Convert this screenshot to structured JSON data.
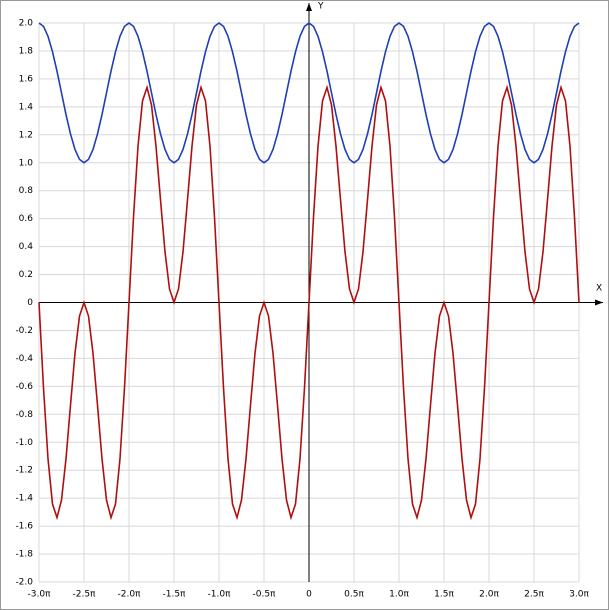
{
  "chart_data": {
    "type": "line",
    "x_label": "X",
    "y_label": "Y",
    "x": [
      -3,
      -2.95,
      -2.9,
      -2.85,
      -2.8,
      -2.75,
      -2.7,
      -2.65,
      -2.6,
      -2.55,
      -2.5,
      -2.45,
      -2.4,
      -2.35,
      -2.3,
      -2.25,
      -2.2,
      -2.15,
      -2.1,
      -2.05,
      -2,
      -1.95,
      -1.9,
      -1.85,
      -1.8,
      -1.75,
      -1.7,
      -1.65,
      -1.6,
      -1.55,
      -1.5,
      -1.45,
      -1.4,
      -1.35,
      -1.3,
      -1.25,
      -1.2,
      -1.15,
      -1.1,
      -1.05,
      -1,
      -0.95,
      -0.9,
      -0.85,
      -0.8,
      -0.75,
      -0.7,
      -0.65,
      -0.6,
      -0.55,
      -0.5,
      -0.45,
      -0.4,
      -0.35,
      -0.3,
      -0.25,
      -0.2,
      -0.15,
      -0.1,
      -0.05,
      0,
      0.05,
      0.1,
      0.15,
      0.2,
      0.25,
      0.3,
      0.35,
      0.4,
      0.45,
      0.5,
      0.55,
      0.6,
      0.65,
      0.7,
      0.75,
      0.8,
      0.85,
      0.9,
      0.95,
      1,
      1.05,
      1.1,
      1.15,
      1.2,
      1.25,
      1.3,
      1.35,
      1.4,
      1.45,
      1.5,
      1.55,
      1.6,
      1.65,
      1.7,
      1.75,
      1.8,
      1.85,
      1.9,
      1.95,
      2,
      2.05,
      2.1,
      2.15,
      2.2,
      2.25,
      2.3,
      2.35,
      2.4,
      2.45,
      2.5,
      2.55,
      2.6,
      2.65,
      2.7,
      2.75,
      2.8,
      2.85,
      2.9,
      2.95,
      3
    ],
    "series": [
      {
        "color": "#1f3fb4",
        "values": [
          2,
          1.976,
          1.905,
          1.794,
          1.655,
          1.5,
          1.345,
          1.206,
          1.095,
          1.024,
          1,
          1.024,
          1.095,
          1.206,
          1.345,
          1.5,
          1.655,
          1.794,
          1.905,
          1.976,
          2,
          1.976,
          1.905,
          1.794,
          1.655,
          1.5,
          1.345,
          1.206,
          1.095,
          1.024,
          1,
          1.024,
          1.095,
          1.206,
          1.345,
          1.5,
          1.655,
          1.794,
          1.905,
          1.976,
          2,
          1.976,
          1.905,
          1.794,
          1.655,
          1.5,
          1.345,
          1.206,
          1.095,
          1.024,
          1,
          1.024,
          1.095,
          1.206,
          1.345,
          1.5,
          1.655,
          1.794,
          1.905,
          1.976,
          2,
          1.976,
          1.905,
          1.794,
          1.655,
          1.5,
          1.345,
          1.206,
          1.095,
          1.024,
          1,
          1.024,
          1.095,
          1.206,
          1.345,
          1.5,
          1.655,
          1.794,
          1.905,
          1.976,
          2,
          1.976,
          1.905,
          1.794,
          1.655,
          1.5,
          1.345,
          1.206,
          1.095,
          1.024,
          1,
          1.024,
          1.095,
          1.206,
          1.345,
          1.5,
          1.655,
          1.794,
          1.905,
          1.976,
          2,
          1.976,
          1.905,
          1.794,
          1.655,
          1.5,
          1.345,
          1.206,
          1.095,
          1.024,
          1,
          1.024,
          1.095,
          1.206,
          1.345,
          1.5,
          1.655,
          1.794,
          1.905,
          1.976,
          2
        ]
      },
      {
        "color": "#b00f0f",
        "values": [
          0,
          -0.61,
          -1.118,
          -1.442,
          -1.539,
          -1.414,
          -1.118,
          -0.735,
          -0.363,
          -0.097,
          0,
          -0.097,
          -0.363,
          -0.735,
          -1.118,
          -1.414,
          -1.539,
          -1.442,
          -1.118,
          -0.61,
          0,
          0.61,
          1.118,
          1.442,
          1.539,
          1.414,
          1.118,
          0.735,
          0.363,
          0.097,
          0,
          0.097,
          0.363,
          0.735,
          1.118,
          1.414,
          1.539,
          1.442,
          1.118,
          0.61,
          0,
          -0.61,
          -1.118,
          -1.442,
          -1.539,
          -1.414,
          -1.118,
          -0.735,
          -0.363,
          -0.097,
          0,
          -0.097,
          -0.363,
          -0.735,
          -1.118,
          -1.414,
          -1.539,
          -1.442,
          -1.118,
          -0.61,
          0,
          0.61,
          1.118,
          1.442,
          1.539,
          1.414,
          1.118,
          0.735,
          0.363,
          0.097,
          0,
          0.097,
          0.363,
          0.735,
          1.118,
          1.414,
          1.539,
          1.442,
          1.118,
          0.61,
          0,
          -0.61,
          -1.118,
          -1.442,
          -1.539,
          -1.414,
          -1.118,
          -0.735,
          -0.363,
          -0.097,
          0,
          -0.097,
          -0.363,
          -0.735,
          -1.118,
          -1.414,
          -1.539,
          -1.442,
          -1.118,
          -0.61,
          0,
          0.61,
          1.118,
          1.442,
          1.539,
          1.414,
          1.118,
          0.735,
          0.363,
          0.097,
          0,
          0.097,
          0.363,
          0.735,
          1.118,
          1.414,
          1.539,
          1.442,
          1.118,
          0.61,
          0
        ]
      }
    ],
    "xlim": [
      -3,
      3
    ],
    "ylim": [
      -2,
      2
    ],
    "xticks": [
      {
        "value": -3,
        "label": "-3.0π"
      },
      {
        "value": -2.5,
        "label": "-2.5π"
      },
      {
        "value": -2,
        "label": "-2.0π"
      },
      {
        "value": -1.5,
        "label": "-1.5π"
      },
      {
        "value": -1,
        "label": "-1.0π"
      },
      {
        "value": -0.5,
        "label": "-0.5π"
      },
      0,
      {
        "value": 0.5,
        "label": "0.5π"
      },
      {
        "value": 1,
        "label": "1.0π"
      },
      {
        "value": 1.5,
        "label": "1.5π"
      },
      {
        "value": 2,
        "label": "2.0π"
      },
      {
        "value": 2.5,
        "label": "2.5π"
      },
      {
        "value": 3,
        "label": "3.0π"
      }
    ],
    "yticks": [
      {
        "value": -2,
        "label": "-2.0"
      },
      -1.8,
      -1.6,
      -1.4,
      -1.2,
      {
        "value": -1,
        "label": "-1.0"
      },
      -0.8,
      -0.6,
      -0.4,
      -0.2,
      0,
      0.2,
      0.4,
      0.6,
      0.8,
      {
        "value": 1,
        "label": "1.0"
      },
      1.2,
      1.4,
      1.6,
      1.8,
      {
        "value": 2,
        "label": "2.0"
      }
    ],
    "grid": true
  }
}
